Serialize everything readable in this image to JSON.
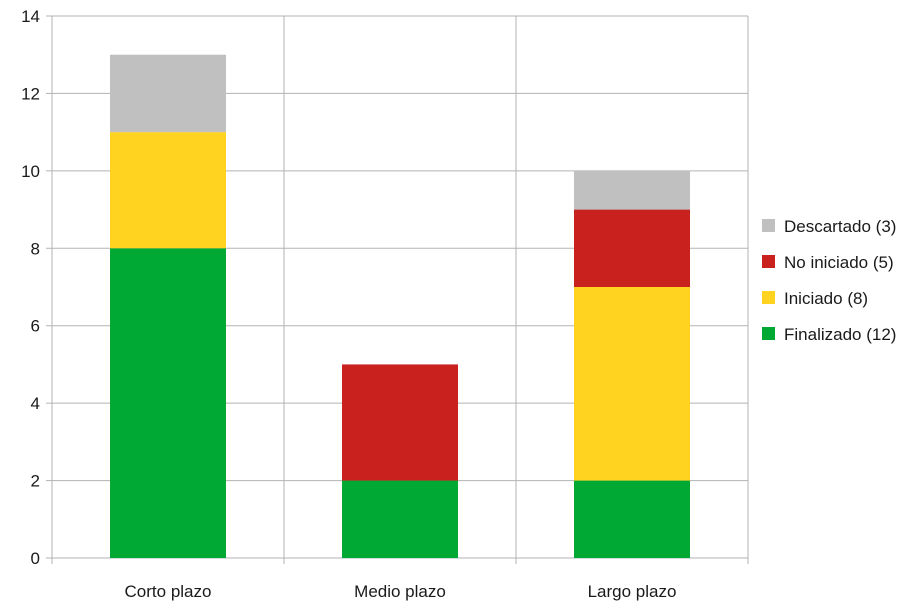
{
  "chart_data": {
    "type": "bar",
    "stacked": true,
    "categories": [
      "Corto plazo",
      "Medio plazo",
      "Largo plazo"
    ],
    "series": [
      {
        "name": "Finalizado (12)",
        "color": "#00a933",
        "values": [
          8,
          2,
          2
        ]
      },
      {
        "name": "Iniciado (8)",
        "color": "#ffd320",
        "values": [
          3,
          0,
          5
        ]
      },
      {
        "name": "No iniciado (5)",
        "color": "#c9211e",
        "values": [
          0,
          3,
          2
        ]
      },
      {
        "name": "Descartado (3)",
        "color": "#c0c0c0",
        "values": [
          2,
          0,
          1
        ]
      }
    ],
    "ylim": [
      0,
      14
    ],
    "yticks": [
      0,
      2,
      4,
      6,
      8,
      10,
      12,
      14
    ],
    "grid": true,
    "legend_position": "right",
    "legend_order": [
      "Descartado (3)",
      "No iniciado (5)",
      "Iniciado (8)",
      "Finalizado (12)"
    ]
  }
}
